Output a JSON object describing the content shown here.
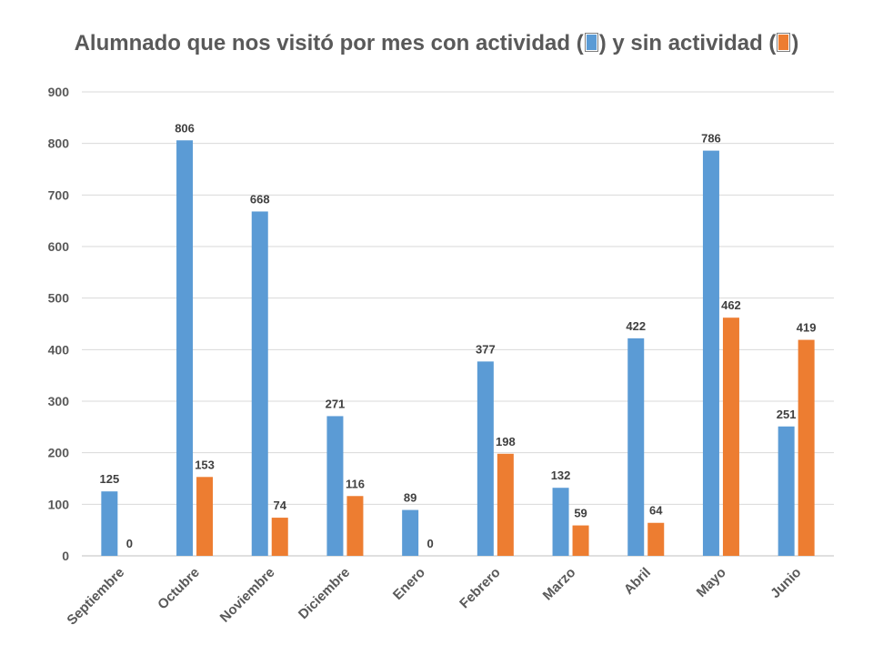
{
  "chart_data": {
    "type": "bar",
    "title_parts": {
      "before": "Alumnado que nos visitó por mes con actividad (",
      "middle": ") y sin actividad (",
      "after": ")"
    },
    "categories": [
      "Septiembre",
      "Octubre",
      "Noviembre",
      "Diciembre",
      "Enero",
      "Febrero",
      "Marzo",
      "Abril",
      "Mayo",
      "Junio"
    ],
    "series": [
      {
        "name": "con actividad",
        "color": "#5B9BD5",
        "values": [
          125,
          806,
          668,
          271,
          89,
          377,
          132,
          422,
          786,
          251
        ]
      },
      {
        "name": "sin actividad",
        "color": "#ED7D31",
        "values": [
          0,
          153,
          74,
          116,
          0,
          198,
          59,
          64,
          462,
          419
        ]
      }
    ],
    "ylim": [
      0,
      900
    ],
    "yticks": [
      0,
      100,
      200,
      300,
      400,
      500,
      600,
      700,
      800,
      900
    ],
    "grid": true,
    "xlabel": "",
    "ylabel": ""
  }
}
